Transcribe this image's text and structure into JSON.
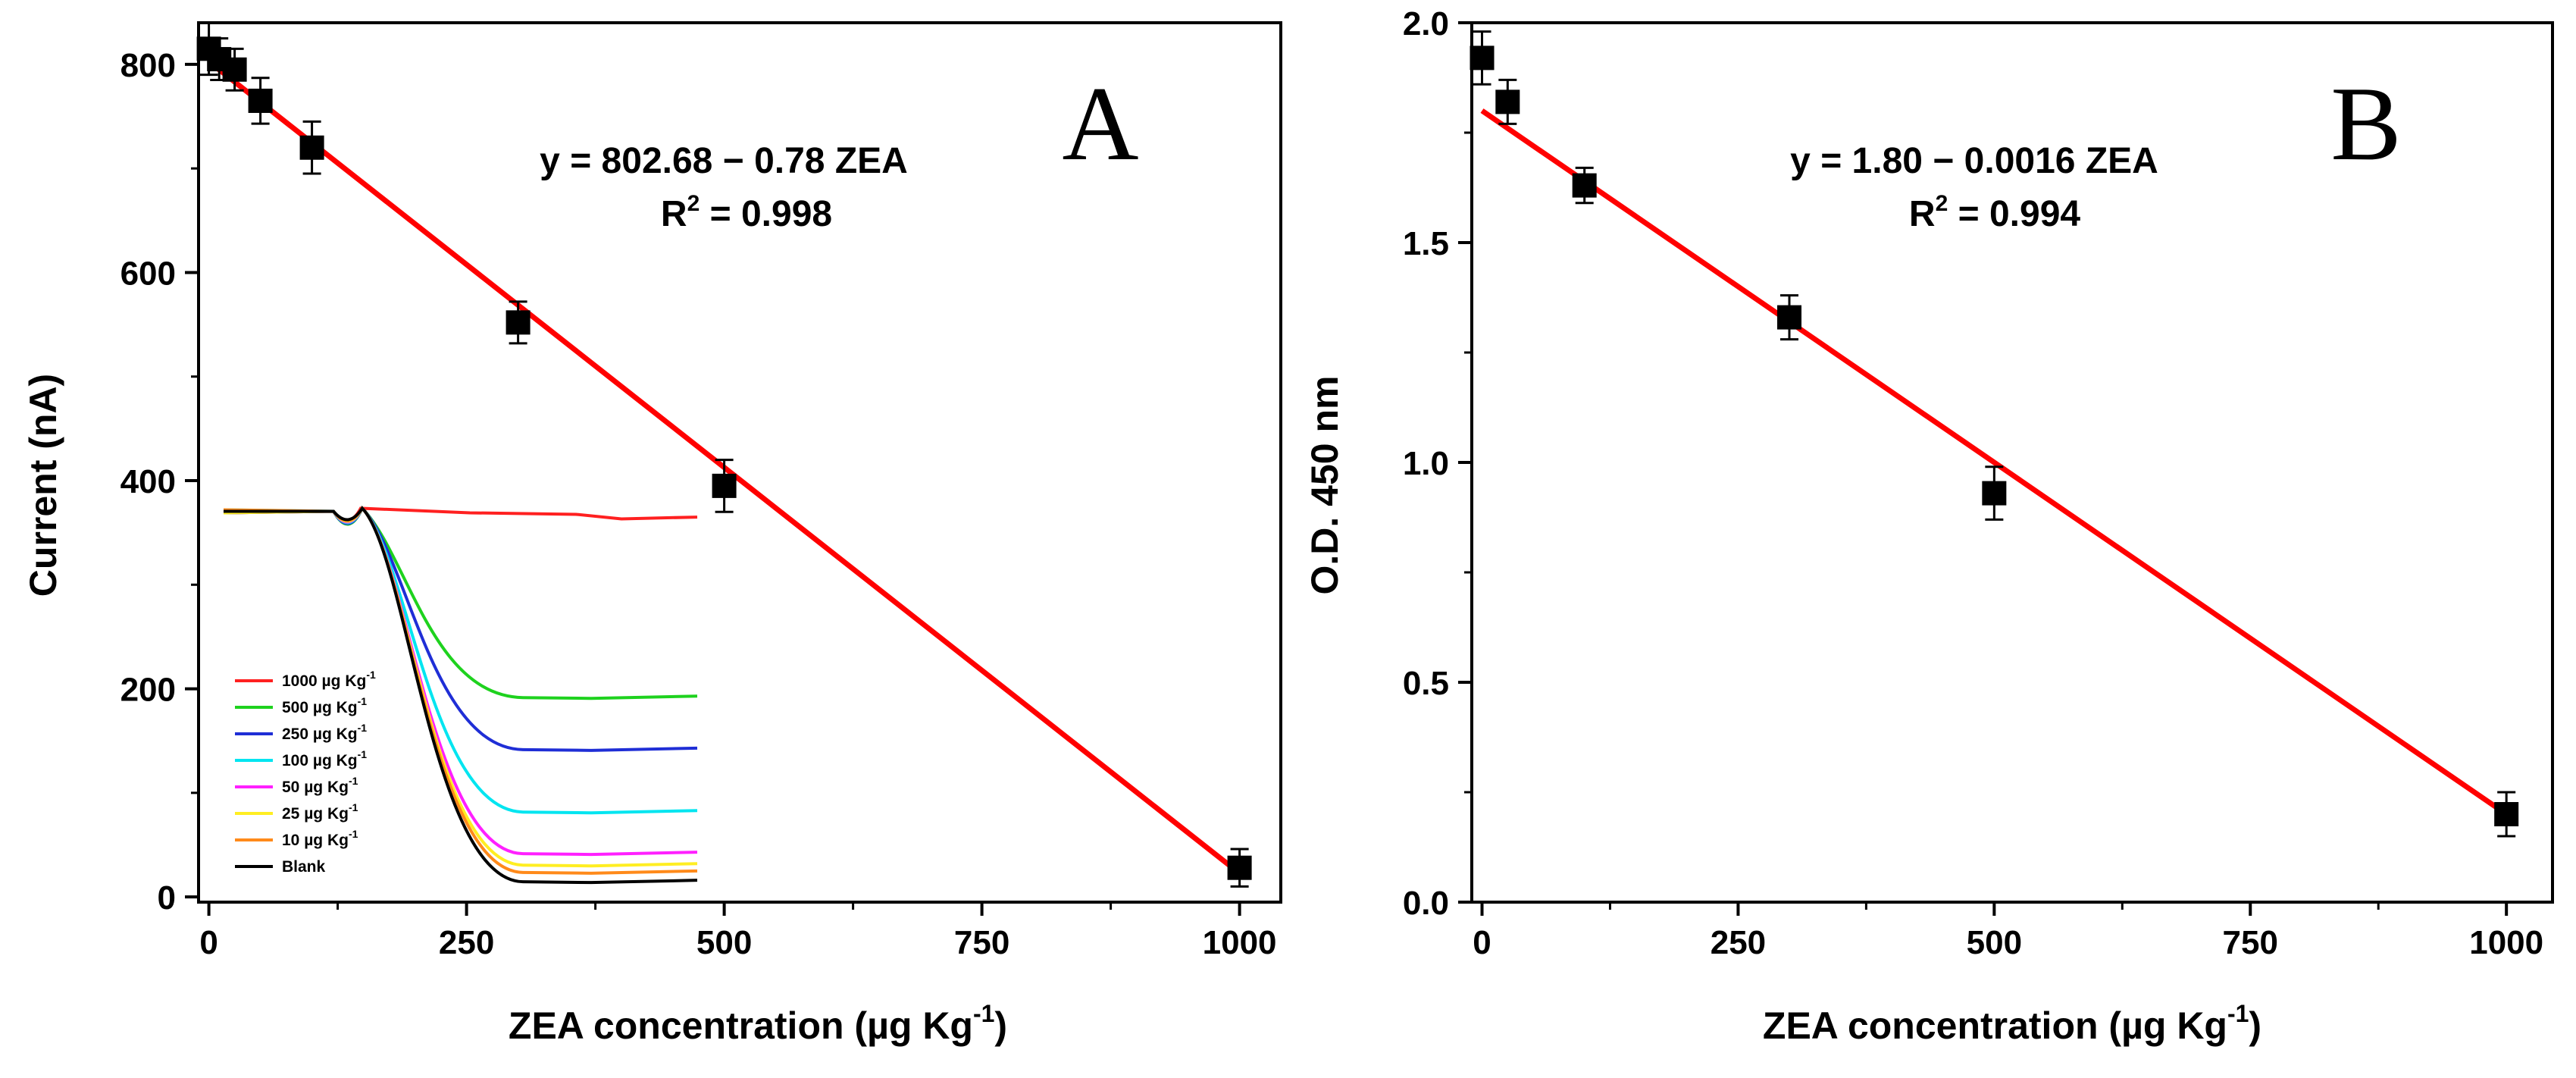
{
  "chart_data": [
    {
      "panel": "A",
      "type": "scatter",
      "panel_label": "A",
      "xlabel": {
        "prefix": "ZEA concentration (µg Kg",
        "sup": "-1",
        "suffix": ")"
      },
      "ylabel": "Current (nA)",
      "xlim": [
        -10,
        1040
      ],
      "ylim": [
        -5,
        840
      ],
      "xticks": [
        0,
        250,
        500,
        750,
        1000
      ],
      "yticks": [
        0,
        200,
        400,
        600,
        800
      ],
      "x": [
        0,
        10,
        25,
        50,
        100,
        300,
        500,
        1000
      ],
      "y": [
        815,
        805,
        795,
        765,
        720,
        552,
        395,
        28
      ],
      "yerr": [
        25,
        20,
        20,
        22,
        25,
        20,
        25,
        18
      ],
      "fit": {
        "intercept": 802.68,
        "slope": -0.78,
        "x_range": [
          0,
          1000
        ],
        "color": "#ff0000"
      },
      "equation": "y = 802.68 − 0.78 ZEA",
      "r2": {
        "prefix": "R",
        "sup": "2",
        "suffix": " = 0.998"
      },
      "inset": {
        "type": "line",
        "series": [
          {
            "label": "1000",
            "color": "#ff2020",
            "final": 365
          },
          {
            "label": "500",
            "color": "#1ed21e",
            "final": 193
          },
          {
            "label": "250",
            "color": "#1f2ed6",
            "final": 143
          },
          {
            "label": "100",
            "color": "#00e5f0",
            "final": 83
          },
          {
            "label": "50",
            "color": "#ff20ff",
            "final": 43
          },
          {
            "label": "25",
            "color": "#ffee22",
            "final": 32
          },
          {
            "label": "10",
            "color": "#ff8a1a",
            "final": 25
          },
          {
            "label": "Blank",
            "color": "#000000",
            "final": 16
          }
        ],
        "legend_unit": {
          "prefix": "µg Kg",
          "sup": "-1"
        }
      }
    },
    {
      "panel": "B",
      "type": "scatter",
      "panel_label": "B",
      "xlabel": {
        "prefix": "ZEA concentration (µg Kg",
        "sup": "-1",
        "suffix": ")"
      },
      "ylabel": "O.D. 450 nm",
      "xlim": [
        -10,
        1045
      ],
      "ylim": [
        0,
        2
      ],
      "xticks": [
        0,
        250,
        500,
        750,
        1000
      ],
      "yticks": [
        0.0,
        0.5,
        1.0,
        1.5,
        2.0
      ],
      "ytick_labels": [
        "0.0",
        "0.5",
        "1.0",
        "1.5",
        "2.0"
      ],
      "x": [
        0,
        25,
        100,
        300,
        500,
        1000
      ],
      "y": [
        1.92,
        1.82,
        1.63,
        1.33,
        0.93,
        0.2
      ],
      "yerr": [
        0.06,
        0.05,
        0.04,
        0.05,
        0.06,
        0.05
      ],
      "fit": {
        "intercept": 1.8,
        "slope": -0.0016,
        "x_range": [
          0,
          1000
        ],
        "color": "#ff0000"
      },
      "equation": "y = 1.80 − 0.0016 ZEA",
      "r2": {
        "prefix": "R",
        "sup": "2",
        "suffix": " = 0.994"
      }
    }
  ]
}
